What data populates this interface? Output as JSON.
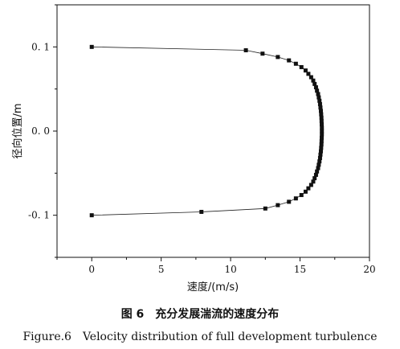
{
  "chart_data": {
    "type": "scatter",
    "xlabel": "速度/(m/s)",
    "ylabel": "径向位置/m",
    "xlim": [
      -2.5,
      20
    ],
    "ylim": [
      -0.15,
      0.15
    ],
    "x_ticks": [
      0,
      5,
      10,
      15,
      20
    ],
    "x_tick_labels": [
      "0",
      "5",
      "10",
      "15",
      "20"
    ],
    "y_ticks": [
      0.1,
      0.0,
      -0.1
    ],
    "y_tick_labels": [
      "0. 1",
      "0. 0",
      "-0. 1"
    ],
    "grid": false,
    "series": [
      {
        "marker": "square",
        "line": true,
        "color": "#111111",
        "points": [
          {
            "x": 0,
            "y": 0.1
          },
          {
            "x": 11.1,
            "y": 0.096
          },
          {
            "x": 12.3,
            "y": 0.092
          },
          {
            "x": 13.4,
            "y": 0.088
          },
          {
            "x": 14.2,
            "y": 0.084
          },
          {
            "x": 14.7,
            "y": 0.08
          },
          {
            "x": 15.1,
            "y": 0.076
          },
          {
            "x": 15.4,
            "y": 0.072
          },
          {
            "x": 15.6,
            "y": 0.068
          },
          {
            "x": 15.8,
            "y": 0.064
          },
          {
            "x": 15.95,
            "y": 0.06
          },
          {
            "x": 16.05,
            "y": 0.056
          },
          {
            "x": 16.15,
            "y": 0.052
          },
          {
            "x": 16.22,
            "y": 0.048
          },
          {
            "x": 16.3,
            "y": 0.044
          },
          {
            "x": 16.35,
            "y": 0.04
          },
          {
            "x": 16.4,
            "y": 0.036
          },
          {
            "x": 16.44,
            "y": 0.032
          },
          {
            "x": 16.47,
            "y": 0.028
          },
          {
            "x": 16.5,
            "y": 0.024
          },
          {
            "x": 16.52,
            "y": 0.02
          },
          {
            "x": 16.54,
            "y": 0.016
          },
          {
            "x": 16.55,
            "y": 0.012
          },
          {
            "x": 16.56,
            "y": 0.008
          },
          {
            "x": 16.57,
            "y": 0.004
          },
          {
            "x": 16.57,
            "y": 0.0
          },
          {
            "x": 16.57,
            "y": -0.004
          },
          {
            "x": 16.56,
            "y": -0.008
          },
          {
            "x": 16.55,
            "y": -0.012
          },
          {
            "x": 16.54,
            "y": -0.016
          },
          {
            "x": 16.52,
            "y": -0.02
          },
          {
            "x": 16.5,
            "y": -0.024
          },
          {
            "x": 16.47,
            "y": -0.028
          },
          {
            "x": 16.44,
            "y": -0.032
          },
          {
            "x": 16.4,
            "y": -0.036
          },
          {
            "x": 16.35,
            "y": -0.04
          },
          {
            "x": 16.3,
            "y": -0.044
          },
          {
            "x": 16.22,
            "y": -0.048
          },
          {
            "x": 16.15,
            "y": -0.052
          },
          {
            "x": 16.05,
            "y": -0.056
          },
          {
            "x": 15.95,
            "y": -0.06
          },
          {
            "x": 15.8,
            "y": -0.064
          },
          {
            "x": 15.6,
            "y": -0.068
          },
          {
            "x": 15.4,
            "y": -0.072
          },
          {
            "x": 15.1,
            "y": -0.076
          },
          {
            "x": 14.7,
            "y": -0.08
          },
          {
            "x": 14.2,
            "y": -0.084
          },
          {
            "x": 13.4,
            "y": -0.088
          },
          {
            "x": 12.5,
            "y": -0.092
          },
          {
            "x": 7.9,
            "y": -0.096
          },
          {
            "x": 0,
            "y": -0.1
          }
        ]
      }
    ]
  },
  "caption": {
    "cn": "图 6　充分发展湍流的速度分布",
    "en": "Figure.6　Velocity distribution of full development turbulence"
  }
}
